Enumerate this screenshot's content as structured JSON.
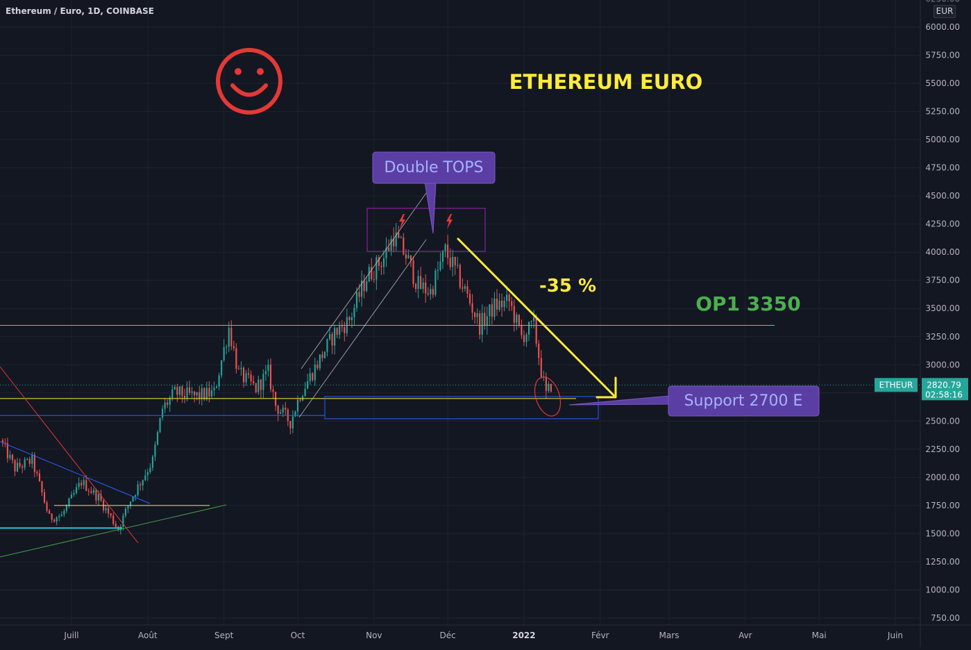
{
  "header": {
    "symbol_title": "Ethereum / Euro, 1D, COINBASE",
    "currency": "EUR"
  },
  "annotations": {
    "main_title": "ETHEREUM EURO",
    "double_tops": "Double TOPS",
    "drop_percent": "-35 %",
    "target": "OP1 3350",
    "support": "Support  2700 E",
    "smiley_icon": "smiley-face-icon",
    "top_markers_icon": "lightning-bolt-icon"
  },
  "price_tag": {
    "ticker": "ETHEUR",
    "price": "2820.79",
    "countdown": "02:58:16"
  },
  "colors": {
    "background": "#131722",
    "up": "#26a69a",
    "down": "#ef5350",
    "title_yellow": "#ffeb3b",
    "target_green": "#4caf50",
    "label_purple": "#5b3ea4",
    "smiley_red": "#e53935"
  },
  "chart_data": {
    "type": "candlestick",
    "series": [
      {
        "name": "Ethereum / Euro"
      }
    ],
    "ylim": [
      650,
      6350
    ],
    "yticks": [
      750,
      1000,
      1250,
      1500,
      1750,
      2000,
      2250,
      2500,
      2750,
      3000,
      3250,
      3500,
      3750,
      4000,
      4250,
      4500,
      4750,
      5000,
      5250,
      5500,
      5750,
      6000
    ],
    "ytick_labels": [
      "750.00",
      "1000.00",
      "1250.00",
      "1500.00",
      "1750.00",
      "2000.00",
      "2250.00",
      "2500.00",
      "2750.00",
      "3000.00",
      "3250.00",
      "3500.00",
      "3750.00",
      "4000.00",
      "4250.00",
      "4500.00",
      "4750.00",
      "5000.00",
      "5250.00",
      "5500.00",
      "5750.00",
      "6000.00"
    ],
    "xlim": [
      "2021-06-02",
      "2022-06-30"
    ],
    "xticks": [
      {
        "date": "2021-07-01",
        "label": "Juill"
      },
      {
        "date": "2021-08-01",
        "label": "Août"
      },
      {
        "date": "2021-09-01",
        "label": "Sept"
      },
      {
        "date": "2021-10-01",
        "label": "Oct"
      },
      {
        "date": "2021-11-01",
        "label": "Nov"
      },
      {
        "date": "2021-12-01",
        "label": "Déc"
      },
      {
        "date": "2022-01-01",
        "label": "2022"
      },
      {
        "date": "2022-02-01",
        "label": "Févr"
      },
      {
        "date": "2022-03-01",
        "label": "Mars"
      },
      {
        "date": "2022-04-01",
        "label": "Avr"
      },
      {
        "date": "2022-05-01",
        "label": "Mai"
      },
      {
        "date": "2022-06-01",
        "label": "Juin"
      }
    ],
    "closes": [
      {
        "date": "2021-06-03",
        "close": 2290
      },
      {
        "date": "2021-06-08",
        "close": 2080
      },
      {
        "date": "2021-06-15",
        "close": 2150
      },
      {
        "date": "2021-06-22",
        "close": 1640
      },
      {
        "date": "2021-06-27",
        "close": 1660
      },
      {
        "date": "2021-07-05",
        "close": 1960
      },
      {
        "date": "2021-07-12",
        "close": 1820
      },
      {
        "date": "2021-07-20",
        "close": 1540
      },
      {
        "date": "2021-07-25",
        "close": 1800
      },
      {
        "date": "2021-08-03",
        "close": 2150
      },
      {
        "date": "2021-08-07",
        "close": 2610
      },
      {
        "date": "2021-08-12",
        "close": 2750
      },
      {
        "date": "2021-08-20",
        "close": 2720
      },
      {
        "date": "2021-08-28",
        "close": 2750
      },
      {
        "date": "2021-09-03",
        "close": 3330
      },
      {
        "date": "2021-09-07",
        "close": 2920
      },
      {
        "date": "2021-09-14",
        "close": 2790
      },
      {
        "date": "2021-09-19",
        "close": 2930
      },
      {
        "date": "2021-09-22",
        "close": 2640
      },
      {
        "date": "2021-09-28",
        "close": 2490
      },
      {
        "date": "2021-10-02",
        "close": 2740
      },
      {
        "date": "2021-10-10",
        "close": 3050
      },
      {
        "date": "2021-10-16",
        "close": 3280
      },
      {
        "date": "2021-10-22",
        "close": 3400
      },
      {
        "date": "2021-10-29",
        "close": 3780
      },
      {
        "date": "2021-11-05",
        "close": 3950
      },
      {
        "date": "2021-11-09",
        "close": 4150
      },
      {
        "date": "2021-11-14",
        "close": 3970
      },
      {
        "date": "2021-11-19",
        "close": 3700
      },
      {
        "date": "2021-11-24",
        "close": 3650
      },
      {
        "date": "2021-11-30",
        "close": 4010
      },
      {
        "date": "2021-12-03",
        "close": 3880
      },
      {
        "date": "2021-12-08",
        "close": 3660
      },
      {
        "date": "2021-12-14",
        "close": 3350
      },
      {
        "date": "2021-12-20",
        "close": 3520
      },
      {
        "date": "2021-12-26",
        "close": 3560
      },
      {
        "date": "2021-12-31",
        "close": 3250
      },
      {
        "date": "2022-01-05",
        "close": 3350
      },
      {
        "date": "2022-01-08",
        "close": 2950
      },
      {
        "date": "2022-01-10",
        "close": 2730
      },
      {
        "date": "2022-01-12",
        "close": 2821
      }
    ],
    "horizontal_levels": [
      {
        "price": 3350,
        "color": "#ff9800"
      },
      {
        "price": 2700,
        "color": "#ffeb3b"
      },
      {
        "price": 2550,
        "color": "#2962ff"
      },
      {
        "price": 1750,
        "color": "#ffeb3b"
      },
      {
        "price": 1550,
        "color": "#26c6da"
      }
    ],
    "current_price": 2820.79
  }
}
